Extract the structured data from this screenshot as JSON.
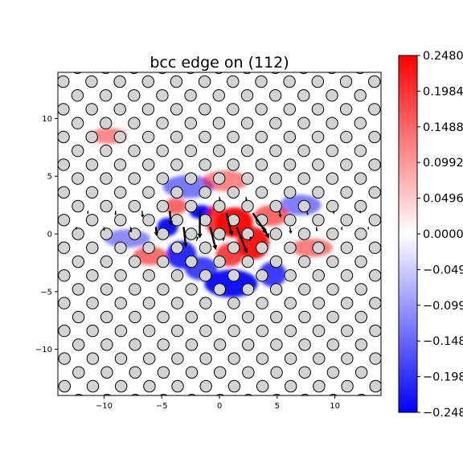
{
  "chart_data": {
    "type": "heatmap",
    "title": "bcc edge on (112)",
    "xlabel": "",
    "ylabel": "",
    "xlim": [
      -14,
      14
    ],
    "ylim": [
      -14,
      14
    ],
    "xticks": [
      -10,
      -5,
      0,
      5,
      10
    ],
    "yticks": [
      -10,
      -5,
      0,
      5,
      10
    ],
    "xtick_labels": [
      "−10",
      "−5",
      "0",
      "5",
      "10"
    ],
    "ytick_labels": [
      "−10",
      "−5",
      "0",
      "5",
      "10"
    ],
    "colormap": "bwr",
    "colors": {
      "min": "#0000ff",
      "mid": "#ffffff",
      "max": "#ff0000"
    },
    "colorbar": {
      "vmin": -0.248,
      "vmax": 0.248,
      "ticks": [
        0.248,
        0.1984,
        0.1488,
        0.0992,
        0.0496,
        0.0,
        -0.0496,
        -0.0992,
        -0.1488,
        -0.1984,
        -0.248
      ],
      "tick_labels": [
        "0.2480",
        "0.1984",
        "0.1488",
        "0.0992",
        "0.0496",
        "0.0000",
        "−0.0496",
        "−0.0992",
        "−0.1488",
        "−0.1984",
        "−0.2480"
      ]
    },
    "atoms": {
      "face_color": "#d3d3d3",
      "edge_color": "#000000",
      "lattice_a1": [
        2.45,
        0
      ],
      "lattice_a2": [
        1.22,
        1.2
      ],
      "radius": 0.5
    },
    "field_blobs": [
      {
        "x": -1.6,
        "y": 1.9,
        "value": -0.248,
        "sx": 1.0,
        "sy": 0.6
      },
      {
        "x": -4.5,
        "y": 0.6,
        "value": -0.24,
        "sx": 0.9,
        "sy": 0.8
      },
      {
        "x": -3.3,
        "y": -1.8,
        "value": -0.2,
        "sx": 1.3,
        "sy": 1.2
      },
      {
        "x": 1.0,
        "y": -4.3,
        "value": -0.24,
        "sx": 2.3,
        "sy": 1.2
      },
      {
        "x": -1.6,
        "y": -3.0,
        "value": -0.16,
        "sx": 1.4,
        "sy": 1.0
      },
      {
        "x": 4.6,
        "y": -3.5,
        "value": -0.17,
        "sx": 1.2,
        "sy": 1.1
      },
      {
        "x": -2.7,
        "y": 4.1,
        "value": -0.07,
        "sx": 2.2,
        "sy": 1.0
      },
      {
        "x": 7.0,
        "y": 2.5,
        "value": -0.06,
        "sx": 1.8,
        "sy": 0.9
      },
      {
        "x": -8.0,
        "y": -0.4,
        "value": -0.04,
        "sx": 2.0,
        "sy": 0.8
      },
      {
        "x": 1.3,
        "y": 1.0,
        "value": 0.248,
        "sx": 1.6,
        "sy": 1.3
      },
      {
        "x": 2.9,
        "y": -0.8,
        "value": 0.23,
        "sx": 1.4,
        "sy": 1.4
      },
      {
        "x": -0.4,
        "y": 1.2,
        "value": 0.18,
        "sx": 0.8,
        "sy": 1.3
      },
      {
        "x": 0.9,
        "y": -1.8,
        "value": 0.16,
        "sx": 1.2,
        "sy": 1.0
      },
      {
        "x": -3.8,
        "y": 2.4,
        "value": 0.1,
        "sx": 1.0,
        "sy": 0.7
      },
      {
        "x": 4.5,
        "y": 1.6,
        "value": 0.1,
        "sx": 1.5,
        "sy": 0.9
      },
      {
        "x": -6.0,
        "y": -1.9,
        "value": 0.09,
        "sx": 1.5,
        "sy": 0.8
      },
      {
        "x": 8.0,
        "y": -1.2,
        "value": 0.06,
        "sx": 1.8,
        "sy": 0.8
      },
      {
        "x": -9.6,
        "y": 8.5,
        "value": 0.04,
        "sx": 1.6,
        "sy": 0.7
      },
      {
        "x": 0.5,
        "y": 4.6,
        "value": 0.05,
        "sx": 2.0,
        "sy": 0.9
      }
    ],
    "displacement_arrows": [
      {
        "x": -1.7,
        "y": 2.0,
        "dx": 0.0,
        "dy": -2.4
      },
      {
        "x": -4.3,
        "y": 2.0,
        "dx": 0.1,
        "dy": -1.3
      },
      {
        "x": 0.6,
        "y": 1.8,
        "dx": 0.5,
        "dy": -2.0
      },
      {
        "x": 2.9,
        "y": 1.8,
        "dx": 1.2,
        "dy": -1.8
      },
      {
        "x": -3.1,
        "y": 0.6,
        "dx": 0.2,
        "dy": -1.8
      },
      {
        "x": -0.8,
        "y": 0.6,
        "dx": 0.5,
        "dy": -2.0
      },
      {
        "x": 1.5,
        "y": 0.6,
        "dx": 0.9,
        "dy": -2.3
      },
      {
        "x": 3.8,
        "y": 0.6,
        "dx": 0.5,
        "dy": -1.0
      },
      {
        "x": -5.5,
        "y": 0.6,
        "dx": 0.05,
        "dy": -0.8
      },
      {
        "x": 6.1,
        "y": 0.6,
        "dx": 0.1,
        "dy": -0.6
      },
      {
        "x": -7.7,
        "y": 0.6,
        "dx": 0.05,
        "dy": -0.5
      },
      {
        "x": 8.4,
        "y": 0.6,
        "dx": 0.05,
        "dy": -0.4
      },
      {
        "x": -6.7,
        "y": 2.0,
        "dx": 0.05,
        "dy": -0.6
      },
      {
        "x": 5.2,
        "y": 2.0,
        "dx": 0.1,
        "dy": -0.6
      },
      {
        "x": -9.0,
        "y": 2.0,
        "dx": 0.0,
        "dy": -0.4
      },
      {
        "x": 7.6,
        "y": 2.0,
        "dx": 0.05,
        "dy": -0.4
      },
      {
        "x": -10.0,
        "y": 0.6,
        "dx": 0.0,
        "dy": -0.35
      },
      {
        "x": 10.6,
        "y": 0.6,
        "dx": 0.0,
        "dy": -0.3
      },
      {
        "x": -11.4,
        "y": 2.0,
        "dx": 0.0,
        "dy": -0.3
      },
      {
        "x": 9.9,
        "y": 2.0,
        "dx": 0.0,
        "dy": -0.3
      },
      {
        "x": -12.4,
        "y": 0.6,
        "dx": 0.0,
        "dy": -0.25
      },
      {
        "x": 12.9,
        "y": 0.6,
        "dx": 0.0,
        "dy": -0.25
      },
      {
        "x": 12.2,
        "y": 2.0,
        "dx": 0.0,
        "dy": -0.25
      },
      {
        "x": -2.0,
        "y": -0.6,
        "dx": 0.15,
        "dy": 0.4
      },
      {
        "x": 0.3,
        "y": -0.6,
        "dx": 0.15,
        "dy": 0.3
      },
      {
        "x": 2.6,
        "y": -0.6,
        "dx": 0.15,
        "dy": 0.4
      },
      {
        "x": 0.0,
        "y": 3.2,
        "dx": 0.05,
        "dy": -0.4
      },
      {
        "x": 2.3,
        "y": 3.2,
        "dx": 0.05,
        "dy": -0.4
      }
    ]
  }
}
